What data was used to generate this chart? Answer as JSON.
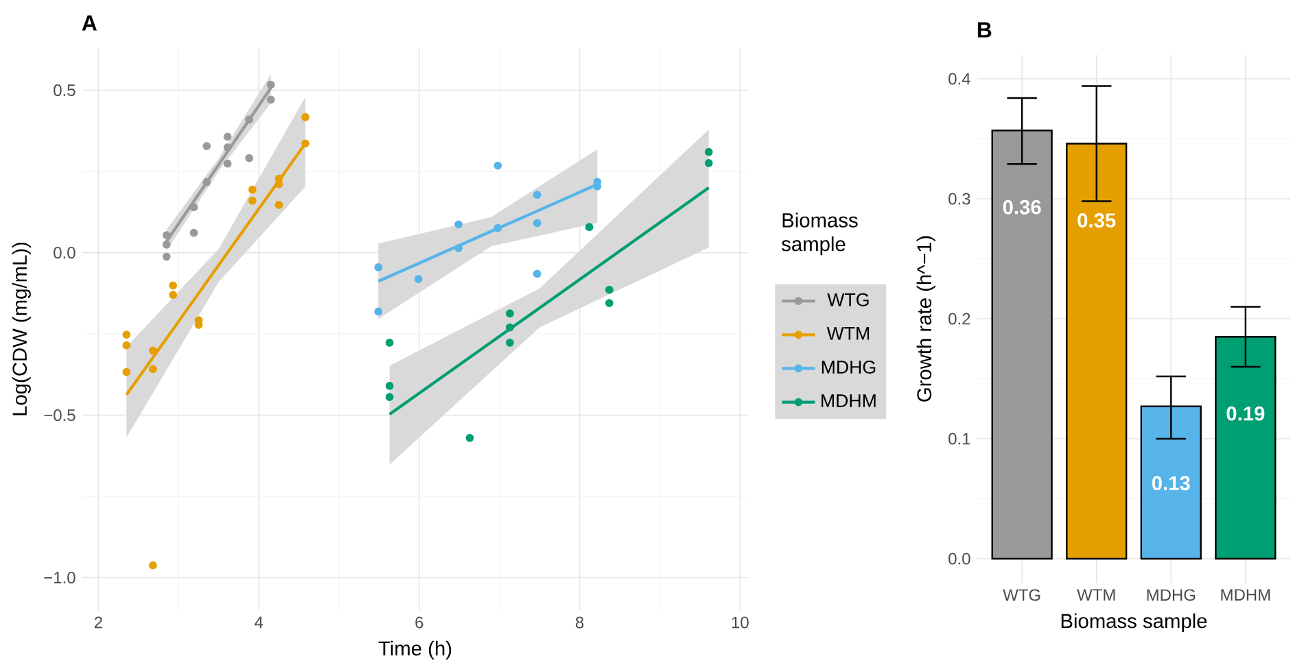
{
  "chart_data": [
    {
      "type": "scatter",
      "title": "A",
      "xlabel": "Time (h)",
      "ylabel": "Log(CDW (mg/mL))",
      "legend_title": "Biomass sample",
      "legend": "right",
      "grid": true,
      "xlim": [
        1.8,
        10.1
      ],
      "ylim": [
        -1.1,
        0.63
      ],
      "xticks": [
        2,
        4,
        6,
        8,
        10
      ],
      "yticks": [
        {
          "value": -1.0,
          "label": "−1.0"
        },
        {
          "value": -0.5,
          "label": "−0.5"
        },
        {
          "value": 0.0,
          "label": "0.0"
        },
        {
          "value": 0.5,
          "label": "0.5"
        }
      ],
      "series": [
        {
          "name": "WTG",
          "type": "scatter",
          "marker": "circle",
          "color": "#999999",
          "x": [
            4.15,
            4.15,
            2.85,
            2.85,
            2.85,
            3.19,
            3.19,
            3.35,
            3.35,
            3.61,
            3.61,
            3.61,
            3.88,
            3.88
          ],
          "values": [
            0.517,
            0.471,
            0.054,
            0.025,
            -0.012,
            0.14,
            0.061,
            0.328,
            0.217,
            0.357,
            0.324,
            0.274,
            0.41,
            0.291
          ]
        },
        {
          "name": "WTM",
          "type": "scatter",
          "marker": "circle",
          "color": "#e69f00",
          "x": [
            2.35,
            2.35,
            2.35,
            2.68,
            2.68,
            2.68,
            2.93,
            2.93,
            3.25,
            3.25,
            3.92,
            3.92,
            4.25,
            4.25,
            4.25,
            4.58,
            4.58
          ],
          "values": [
            -0.252,
            -0.285,
            -0.367,
            -0.301,
            -0.358,
            -0.962,
            -0.101,
            -0.13,
            -0.208,
            -0.222,
            0.194,
            0.16,
            0.228,
            0.211,
            0.147,
            0.417,
            0.336
          ]
        },
        {
          "name": "MDHG",
          "type": "scatter",
          "marker": "circle",
          "color": "#56b4e9",
          "x": [
            5.49,
            5.49,
            5.99,
            6.49,
            6.49,
            6.98,
            6.98,
            7.47,
            7.47,
            7.47,
            8.22,
            8.22
          ],
          "values": [
            -0.045,
            -0.181,
            -0.081,
            0.087,
            0.014,
            0.268,
            0.076,
            0.178,
            0.091,
            -0.065,
            0.218,
            0.204
          ]
        },
        {
          "name": "MDHM",
          "type": "scatter",
          "marker": "circle",
          "color": "#009e73",
          "x": [
            5.63,
            5.63,
            5.63,
            6.63,
            7.13,
            7.13,
            7.13,
            8.12,
            8.37,
            8.37,
            9.61,
            9.61
          ],
          "values": [
            -0.277,
            -0.41,
            -0.444,
            -0.57,
            -0.187,
            -0.23,
            -0.277,
            0.079,
            -0.114,
            -0.155,
            0.31,
            0.276
          ]
        },
        {
          "type": "line",
          "color": "#999999",
          "x": [
            2.85,
            3.5,
            4.15
          ],
          "values": [
            0.035,
            0.271,
            0.507
          ],
          "lower": [
            0.006,
            0.251,
            0.46
          ],
          "upper": [
            0.071,
            0.291,
            0.55
          ]
        },
        {
          "type": "line",
          "color": "#e69f00",
          "x": [
            2.35,
            3.5,
            4.58
          ],
          "values": [
            -0.437,
            -0.038,
            0.336
          ],
          "lower": [
            -0.569,
            -0.09,
            0.203
          ],
          "upper": [
            -0.29,
            0.012,
            0.479
          ]
        },
        {
          "type": "line",
          "color": "#56b4e9",
          "x": [
            5.49,
            6.9,
            8.22
          ],
          "values": [
            -0.088,
            0.066,
            0.21
          ],
          "lower": [
            -0.204,
            0.02,
            0.092
          ],
          "upper": [
            0.028,
            0.11,
            0.318
          ]
        },
        {
          "type": "line",
          "color": "#009e73",
          "x": [
            5.63,
            7.5,
            9.61
          ],
          "values": [
            -0.497,
            -0.17,
            0.2
          ],
          "lower": [
            -0.652,
            -0.23,
            0.016
          ],
          "upper": [
            -0.348,
            -0.11,
            0.379
          ]
        }
      ]
    },
    {
      "type": "bar",
      "title": "B",
      "xlabel": "Biomass sample",
      "ylabel": "Growth rate (h^−1)",
      "grid": true,
      "categories": [
        "WTG",
        "WTM",
        "MDHG",
        "MDHM"
      ],
      "values": [
        0.357,
        0.346,
        0.127,
        0.185
      ],
      "colors": [
        "#999999",
        "#e69f00",
        "#56b4e9",
        "#009e73"
      ],
      "errors": [
        [
          0.329,
          0.384
        ],
        [
          0.298,
          0.394
        ],
        [
          0.1,
          0.152
        ],
        [
          0.16,
          0.21
        ]
      ],
      "value_labels": [
        "0.36",
        "0.35",
        "0.13",
        "0.19"
      ],
      "ylim": [
        -0.02,
        0.42
      ],
      "yticks": [
        {
          "value": 0.0,
          "label": "0.0"
        },
        {
          "value": 0.1,
          "label": "0.1"
        },
        {
          "value": 0.2,
          "label": "0.2"
        },
        {
          "value": 0.3,
          "label": "0.3"
        },
        {
          "value": 0.4,
          "label": "0.4"
        }
      ]
    }
  ]
}
